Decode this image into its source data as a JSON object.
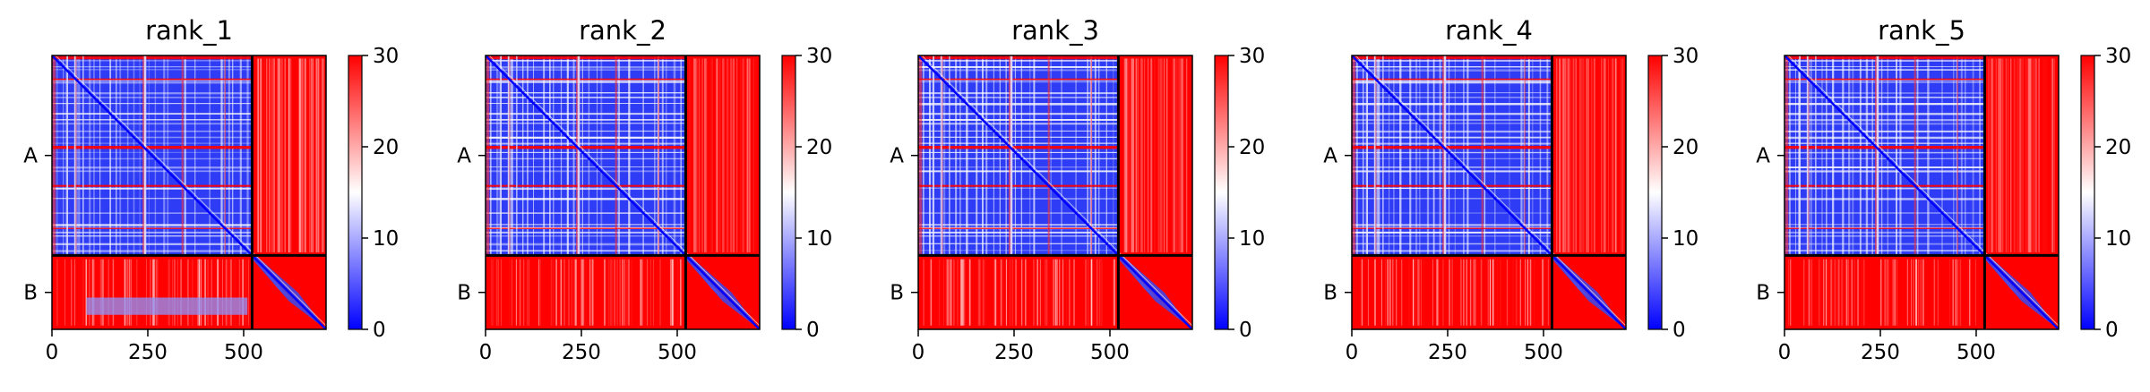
{
  "chart_data": {
    "type": "heatmap",
    "colormap": [
      "#0000ff",
      "#ffffff",
      "#ff0000"
    ],
    "colorbar": {
      "min": 0,
      "max": 30,
      "ticks": [
        0,
        10,
        20,
        30
      ]
    },
    "x_ticks": [
      0,
      250,
      500
    ],
    "y_labels": [
      "A",
      "B"
    ],
    "chain_break": 522,
    "total_length": 715,
    "panels": [
      {
        "title": "rank_1"
      },
      {
        "title": "rank_2"
      },
      {
        "title": "rank_3"
      },
      {
        "title": "rank_4"
      },
      {
        "title": "rank_5"
      }
    ]
  }
}
